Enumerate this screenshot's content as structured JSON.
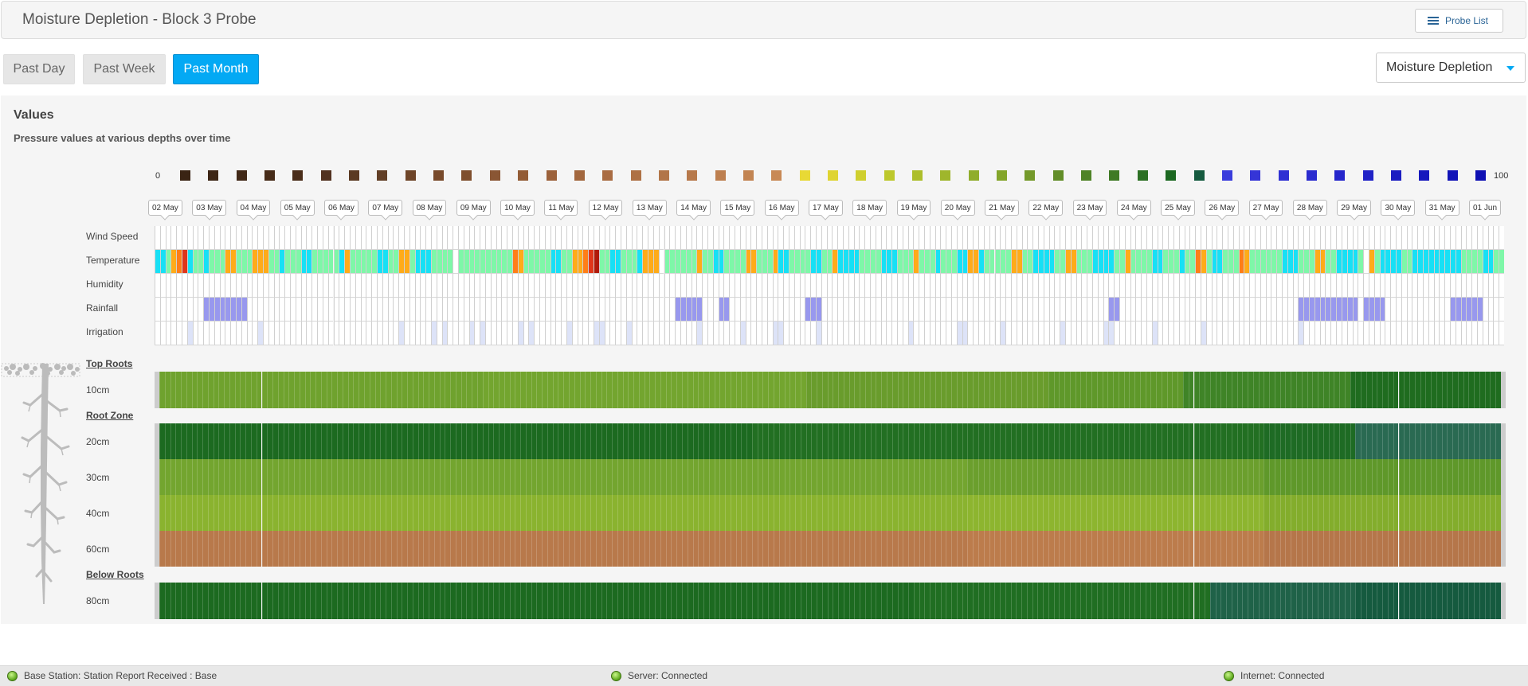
{
  "header": {
    "title": "Moisture Depletion - Block 3 Probe",
    "probe_list_label": "Probe List"
  },
  "range_buttons": [
    {
      "label": "Past Day",
      "active": false
    },
    {
      "label": "Past Week",
      "active": false
    },
    {
      "label": "Past Month",
      "active": true
    }
  ],
  "view_select": {
    "value": "Moisture Depletion"
  },
  "panel": {
    "title": "Values",
    "subtitle": "Pressure values at various depths over time"
  },
  "scale": {
    "min_label": "0",
    "max_label": "100",
    "colors": [
      "#3a2414",
      "#3d2616",
      "#412817",
      "#462b18",
      "#4a2d1a",
      "#523220",
      "#5b3a22",
      "#623f26",
      "#6e4528",
      "#784a2b",
      "#7f4f2d",
      "#8a5634",
      "#935c36",
      "#9c623b",
      "#a2673e",
      "#a96c42",
      "#ae7145",
      "#b27548",
      "#b7794b",
      "#bd7f4f",
      "#c28452",
      "#c88955",
      "#e8d935",
      "#dfd431",
      "#cfcf2e",
      "#bdc82c",
      "#adbe2b",
      "#9fb62c",
      "#90ad2b",
      "#83a52a",
      "#74992a",
      "#628d28",
      "#4f8327",
      "#3f7a25",
      "#2c7024",
      "#1c6821",
      "#155a3f",
      "#3a3ddc",
      "#3535d7",
      "#2f30d3",
      "#2b2ccf",
      "#2526cb",
      "#2022c6",
      "#1b1dc1",
      "#1618bd",
      "#1214b8",
      "#0e10b3"
    ]
  },
  "dates": [
    "02 May",
    "03 May",
    "04 May",
    "05 May",
    "06 May",
    "07 May",
    "08 May",
    "09 May",
    "10 May",
    "11 May",
    "12 May",
    "13 May",
    "14 May",
    "15 May",
    "16 May",
    "17 May",
    "18 May",
    "19 May",
    "20 May",
    "21 May",
    "22 May",
    "23 May",
    "24 May",
    "25 May",
    "26 May",
    "27 May",
    "28 May",
    "29 May",
    "30 May",
    "31 May",
    "01 Jun"
  ],
  "weather_rows": [
    {
      "label": "Wind Speed"
    },
    {
      "label": "Temperature"
    },
    {
      "label": "Humidity"
    },
    {
      "label": "Rainfall"
    },
    {
      "label": "Irrigation"
    }
  ],
  "zones": {
    "top": "Top Roots",
    "root": "Root Zone",
    "below": "Below Roots"
  },
  "depths": [
    "10cm",
    "20cm",
    "30cm",
    "40cm",
    "60cm",
    "80cm"
  ],
  "temperature_palette": [
    "#17e0f5",
    "#7ef7a8",
    "#ffab19",
    "#ff7e18",
    "#e0361a",
    "#b11a0a",
    "#ffffff"
  ],
  "temperature_pattern": [
    0,
    0,
    1,
    2,
    3,
    4,
    0,
    1,
    1,
    0,
    1,
    1,
    1,
    2,
    2,
    1,
    1,
    1,
    2,
    2,
    2,
    1,
    1,
    0,
    1,
    1,
    1,
    0,
    0,
    1,
    1,
    1,
    1,
    1,
    0,
    2,
    1,
    1,
    1,
    1,
    1,
    0,
    0,
    1,
    1,
    2,
    2,
    1,
    0,
    0,
    0,
    1,
    1,
    1,
    1,
    6,
    1,
    1,
    1,
    1,
    1,
    1,
    1,
    1,
    1,
    1,
    3,
    2,
    1,
    1,
    1,
    1,
    1,
    0,
    0,
    1,
    1,
    2,
    2,
    3,
    4,
    5,
    1,
    1,
    0,
    0,
    1,
    1,
    1,
    0,
    2,
    2,
    2,
    6,
    1,
    1,
    1,
    1,
    1,
    1,
    2,
    1,
    1,
    0,
    0,
    1,
    1,
    1,
    1,
    2,
    2,
    1,
    1,
    1,
    2,
    0,
    0,
    1,
    1,
    1,
    1,
    0,
    0,
    1,
    1,
    2,
    0,
    0,
    0,
    0,
    1,
    1,
    1,
    1,
    0,
    0,
    0,
    1,
    1,
    1,
    2,
    1,
    1,
    1,
    0,
    1,
    1,
    1,
    0,
    0,
    2,
    2,
    0,
    1,
    1,
    1,
    1,
    1,
    2,
    2,
    1,
    1,
    0,
    0,
    0,
    0,
    1,
    1,
    2,
    2,
    1,
    1,
    1,
    0,
    0,
    0,
    0,
    1,
    1,
    2,
    1,
    1,
    1,
    1,
    0,
    0,
    1,
    1,
    1,
    0,
    1,
    1,
    3,
    2,
    1,
    0,
    0,
    1,
    1,
    1,
    3,
    2,
    1,
    1,
    1,
    1,
    1,
    1,
    0,
    0,
    0,
    1,
    1,
    1,
    2,
    2,
    1,
    1,
    0,
    0,
    0,
    0,
    1,
    6,
    2,
    1,
    0,
    0,
    0,
    0,
    1,
    1,
    0,
    0,
    0,
    0,
    0,
    0,
    0,
    0,
    0,
    1,
    1,
    1,
    1,
    0,
    0,
    1,
    1,
    1,
    1,
    2,
    2,
    1,
    1,
    1,
    1,
    1,
    1,
    0,
    0,
    1,
    1,
    1,
    2,
    2,
    1,
    1,
    0,
    0,
    0,
    0,
    1,
    2,
    2,
    1,
    0,
    0
  ],
  "rainfall_ranges": [
    [
      9,
      14
    ],
    [
      15,
      16
    ],
    [
      96,
      100
    ],
    [
      104,
      105
    ],
    [
      120,
      122
    ],
    [
      176,
      177
    ],
    [
      211,
      221
    ],
    [
      223,
      226
    ],
    [
      239,
      244
    ]
  ],
  "irrigation_cells": [
    6,
    19,
    45,
    51,
    53,
    58,
    60,
    67,
    69,
    76,
    81,
    82,
    87,
    100,
    108,
    114,
    115,
    122,
    139,
    148,
    149,
    156,
    167,
    175,
    176,
    184,
    193,
    211
  ],
  "band_colors": {
    "d10": [
      "#6fa22e",
      "#73a52f",
      "#699c2c",
      "#5f982a",
      "#3f8427",
      "#1f6c1f"
    ],
    "d20": [
      "#1c6a20",
      "#226f22",
      "#1e6b24",
      "#2a6a52"
    ],
    "d30": [
      "#73a52f",
      "#6b9f2d",
      "#5f982a"
    ],
    "d40": [
      "#8ab32f",
      "#8db52f",
      "#83ad2c"
    ],
    "d60": [
      "#b8794b",
      "#bc7c4c",
      "#b5764a"
    ],
    "d80": [
      "#1c6a20",
      "#206e22",
      "#1f6248",
      "#155a3f"
    ]
  }
}
